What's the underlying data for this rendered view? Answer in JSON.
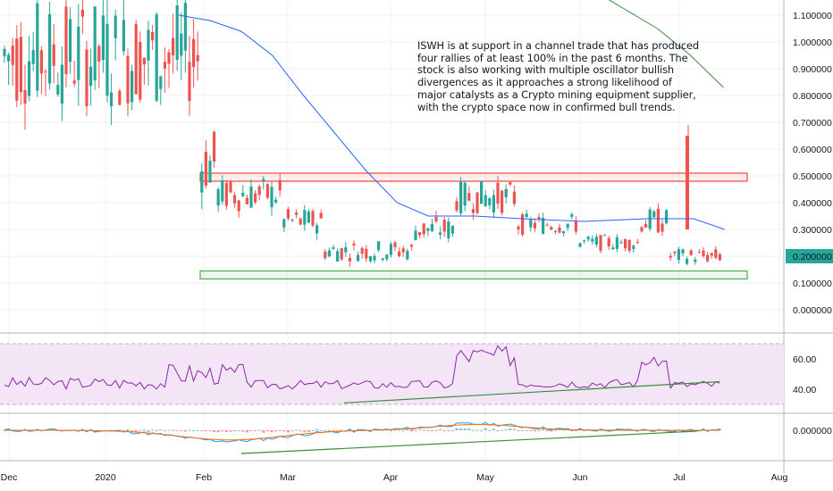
{
  "annotation": {
    "lines": [
      "ISWH is at support in a channel trade that has produced",
      "four rallies of at least 100% in the past 6 months. The",
      "stock is also working with multiple oscillator bullish",
      "divergences as it approaches a strong likelihood of",
      "major catalysts as a Crypto mining equipment supplier,",
      "with the crypto space now in confirmed bull trends."
    ]
  },
  "colors": {
    "up": "#26a69a",
    "down": "#ef5350",
    "ma_blue": "#2962ff",
    "ma_green": "#388e3c",
    "rsi_line": "#8e24aa",
    "rsi_band": "#f3e5f5",
    "macd_line": "#2196f3",
    "signal_line": "#ff6d00",
    "support_box": "#4caf50",
    "resistance_box": "#f44336",
    "price_badge": "#26a69a"
  },
  "chart_data": [
    {
      "type": "candlestick",
      "panel": "price",
      "yaxis_ticks": [
        "1.100000",
        "1.000000",
        "0.900000",
        "0.800000",
        "0.700000",
        "0.600000",
        "0.500000",
        "0.400000",
        "0.300000",
        "0.200000",
        "0.100000",
        "0.000000"
      ],
      "ylim": [
        -0.02,
        1.15
      ],
      "last_price": "0.200000",
      "xaxis_ticks": [
        "Dec",
        "2020",
        "Feb",
        "Mar",
        "Apr",
        "May",
        "Jun",
        "Jul",
        "Aug"
      ],
      "resistance_zone": [
        0.48,
        0.51
      ],
      "support_zone": [
        0.115,
        0.145
      ],
      "ma_50": [
        [
          0,
          1.1
        ],
        [
          10,
          1.08
        ],
        [
          20,
          1.04
        ],
        [
          30,
          0.95
        ],
        [
          40,
          0.8
        ],
        [
          50,
          0.66
        ],
        [
          60,
          0.52
        ],
        [
          70,
          0.4
        ],
        [
          80,
          0.35
        ],
        [
          95,
          0.35
        ],
        [
          110,
          0.34
        ],
        [
          130,
          0.33
        ],
        [
          150,
          0.34
        ],
        [
          165,
          0.34
        ],
        [
          175,
          0.3
        ]
      ],
      "ma_200": [
        [
          140,
          1.16
        ],
        [
          155,
          1.05
        ],
        [
          165,
          0.95
        ],
        [
          175,
          0.83
        ]
      ]
    },
    {
      "type": "line",
      "panel": "rsi",
      "yaxis_ticks": [
        "60.00",
        "40.00"
      ],
      "ylim": [
        25,
        75
      ],
      "band": [
        30,
        70
      ],
      "divergence_line": [
        [
          60,
          31
        ],
        [
          165,
          45
        ]
      ]
    },
    {
      "type": "line",
      "panel": "macd",
      "yaxis_ticks": [
        "0.000000"
      ]
    }
  ]
}
